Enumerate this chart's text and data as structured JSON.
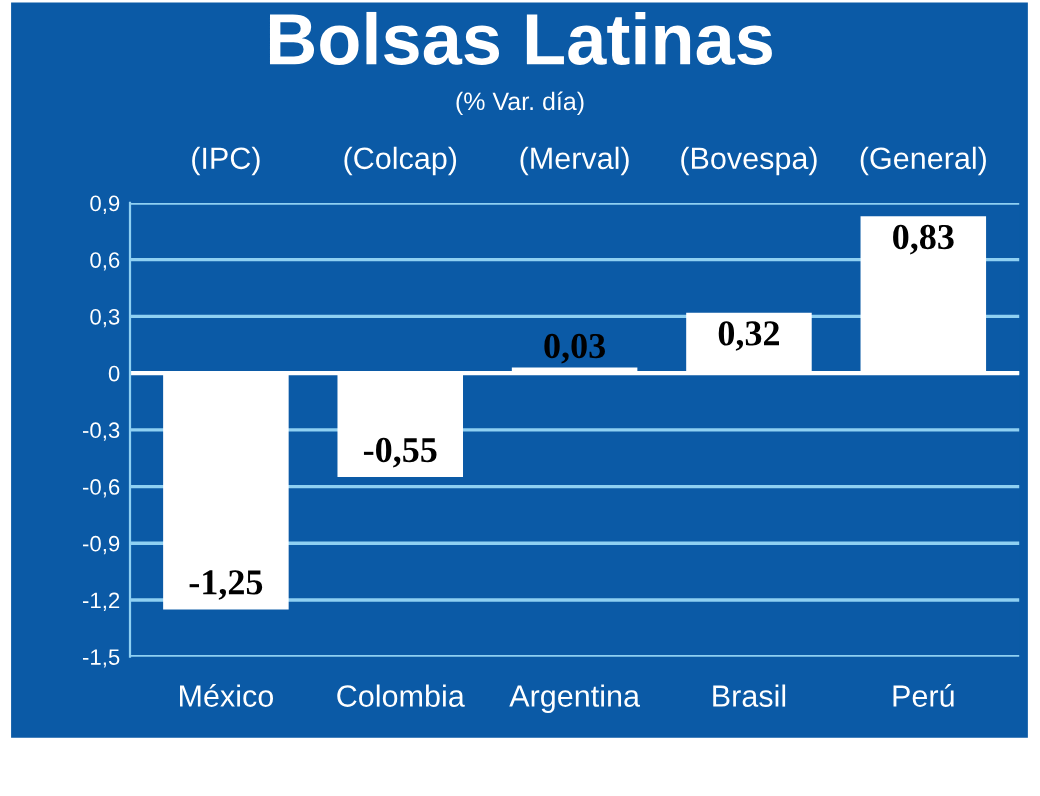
{
  "chart_data": {
    "type": "bar",
    "title": "Bolsas Latinas",
    "subtitle": "(% Var. día)",
    "categories": [
      "México",
      "Colombia",
      "Argentina",
      "Brasil",
      "Perú"
    ],
    "annotations": [
      "(IPC)",
      "(Colcap)",
      "(Merval)",
      "(Bovespa)",
      "(General)"
    ],
    "values": [
      -1.25,
      -0.55,
      0.03,
      0.32,
      0.83
    ],
    "value_labels": [
      "-1,25",
      "-0,55",
      "0,03",
      "0,32",
      "0,83"
    ],
    "color": "#ffffff",
    "ylim": [
      -1.5,
      0.9
    ],
    "yticks": [
      {
        "value": 0.9,
        "label": "0,9"
      },
      {
        "value": 0.6,
        "label": "0,6"
      },
      {
        "value": 0.3,
        "label": "0,3"
      },
      {
        "value": 0,
        "label": "0"
      },
      {
        "value": -0.3,
        "label": "-0,3"
      },
      {
        "value": -0.6,
        "label": "-0,6"
      },
      {
        "value": -0.9,
        "label": "-0,9"
      },
      {
        "value": -1.2,
        "label": "-1,2"
      },
      {
        "value": -1.5,
        "label": "-1,5"
      }
    ],
    "grid": "y"
  }
}
